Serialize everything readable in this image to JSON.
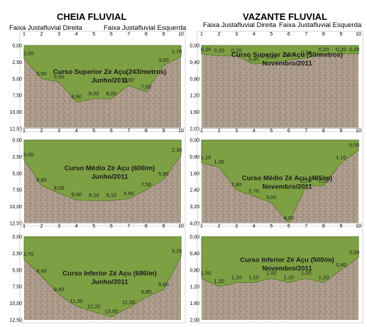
{
  "headings": {
    "left": "CHEIA FLUVIAL",
    "right": "VAZANTE FLUVIAL"
  },
  "subheads": {
    "left_right_bank": "Faixa Justafluvial Direita",
    "left_left_bank": "Faixa Justafluvial Esquerda",
    "right_right_bank": "Faixa Justafluvial Direita",
    "right_left_bank": "Faixa Justafluvial Esquerda"
  },
  "colors": {
    "water": "#7ea044",
    "water_stroke": "#5f7d2c",
    "soil": "#ab9a8a",
    "label": "#1a1a1a"
  },
  "chart_data": [
    {
      "id": "c1",
      "type": "area",
      "x": [
        1,
        2,
        3,
        4,
        5,
        6,
        7,
        8,
        9,
        10
      ],
      "y": [
        2.0,
        5.0,
        5.5,
        8.5,
        8.0,
        8.0,
        6.0,
        7.0,
        3.0,
        1.7
      ],
      "labels": [
        "2,00",
        "5,00",
        "5,50",
        "8,50",
        "8,00",
        "8,00",
        "6,00",
        "7,00",
        "3,00",
        "1,70"
      ],
      "xticks": [
        "1",
        "2",
        "3",
        "4",
        "5",
        "6",
        "7",
        "8",
        "9",
        "10"
      ],
      "ylim": [
        0,
        12.5
      ],
      "yticks": [
        "0,00",
        "2,50",
        "5,00",
        "7,50",
        "10,00",
        "12,50"
      ],
      "title_line1": "Curso Superior Zé Açu(243/metros)",
      "title_line2": "Junho/2011"
    },
    {
      "id": "c2",
      "type": "area",
      "x": [
        1,
        2,
        3,
        4,
        5,
        6,
        7,
        8,
        9,
        10
      ],
      "y": [
        0.2,
        0.25,
        0.25,
        0.45,
        0.4,
        0.35,
        0.3,
        0.2,
        0.2,
        0.2
      ],
      "labels": [
        "0,20",
        "0,25",
        "0,25",
        "0,45",
        "0,40",
        "0,35",
        "0,30",
        "0,20",
        "0,20",
        "0,20"
      ],
      "xticks": [
        "1",
        "2",
        "3",
        "4",
        "5",
        "6",
        "7",
        "8",
        "9",
        "10"
      ],
      "ylim": [
        0,
        2.0
      ],
      "yticks": [
        "0,00",
        "0,40",
        "0,80",
        "1,20",
        "1,60",
        "2,00"
      ],
      "title_line1": "Curso Superior  Zé Açu (50/metros)",
      "title_line2": "Novembro/2011"
    },
    {
      "id": "c3",
      "type": "area",
      "x": [
        1,
        2,
        3,
        4,
        5,
        6,
        7,
        8,
        9,
        10
      ],
      "y": [
        3.0,
        6.8,
        8.0,
        9.0,
        9.1,
        9.1,
        8.8,
        7.5,
        5.9,
        2.3
      ],
      "labels": [
        "3,00",
        "6,80",
        "8,00",
        "9,00",
        "9,10",
        "9,10",
        "8,80",
        "7,50",
        "5,90",
        "2,30"
      ],
      "xticks": [
        "1",
        "2",
        "3",
        "4",
        "5",
        "6",
        "7",
        "8",
        "9",
        "10"
      ],
      "ylim": [
        0,
        12.5
      ],
      "yticks": [
        "0,00",
        "2,50",
        "5,00",
        "7,50",
        "10,00",
        "12,50"
      ],
      "title_line1": "Curso Médio Zé Açu (600/m)",
      "title_line2": "Junho/2011"
    },
    {
      "id": "c4",
      "type": "area",
      "x": [
        1,
        2,
        3,
        4,
        5,
        6,
        7,
        8,
        9,
        10
      ],
      "y": [
        1.1,
        1.3,
        2.4,
        2.7,
        3.0,
        4.0,
        2.2,
        2.2,
        1.1,
        0.5
      ],
      "labels": [
        "1,10",
        "1,30",
        "2,40",
        "2,70",
        "3,00",
        "4,00",
        "2,20",
        "2,20",
        "1,10",
        "0,50"
      ],
      "xticks": [
        "1",
        "2",
        "3",
        "4",
        "5",
        "6",
        "7",
        "8",
        "9",
        "10"
      ],
      "ylim": [
        0,
        4.0
      ],
      "yticks": [
        "0,00",
        "0,80",
        "1,60",
        "2,40",
        "3,20",
        "4,00"
      ],
      "title_line1": "Curso Médio Zé Açu (465/m)",
      "title_line2": "Novembro/2011"
    },
    {
      "id": "c5",
      "type": "area",
      "x": [
        1,
        2,
        3,
        4,
        5,
        6,
        7,
        8,
        9,
        10
      ],
      "y": [
        3.7,
        6.4,
        9.4,
        11.3,
        12.2,
        13.0,
        11.5,
        9.8,
        8.6,
        3.2
      ],
      "labels": [
        "3,70",
        "6,40",
        "9,40",
        "11,30",
        "12,20",
        "13,00",
        "11,50",
        "9,80",
        "8,60",
        "3,20"
      ],
      "xticks": [
        "1",
        "2",
        "3",
        "4",
        "5",
        "6",
        "7",
        "8",
        "9",
        "10"
      ],
      "ylim": [
        0,
        13.5
      ],
      "yticks": [
        "0,00",
        "2,50",
        "5,00",
        "7,50",
        "10,00",
        "12,50"
      ],
      "title_line1": "Curso Inferior  Zé Açu (686/m)",
      "title_line2": "Junho/2011"
    },
    {
      "id": "c6",
      "type": "area",
      "x": [
        1,
        2,
        3,
        4,
        5,
        6,
        7,
        8,
        9,
        10
      ],
      "y": [
        1.0,
        1.2,
        1.1,
        1.1,
        1.0,
        1.1,
        1.0,
        1.1,
        0.8,
        0.5
      ],
      "labels": [
        "1,00",
        "1,20",
        "1,10",
        "1,10",
        "1,00",
        "1,10",
        "1,00",
        "1,10",
        "0,80",
        "0,50"
      ],
      "xticks": [
        "1",
        "2",
        "3",
        "4",
        "5",
        "6",
        "7",
        "8",
        "9",
        "10"
      ],
      "ylim": [
        0,
        2.0
      ],
      "yticks": [
        "0,00",
        "0,40",
        "0,80",
        "1,20",
        "1,60",
        "2,00"
      ],
      "title_line1": "Curso Inferior  Zé Açu (500/m)",
      "title_line2": "Novembro/2011"
    }
  ]
}
